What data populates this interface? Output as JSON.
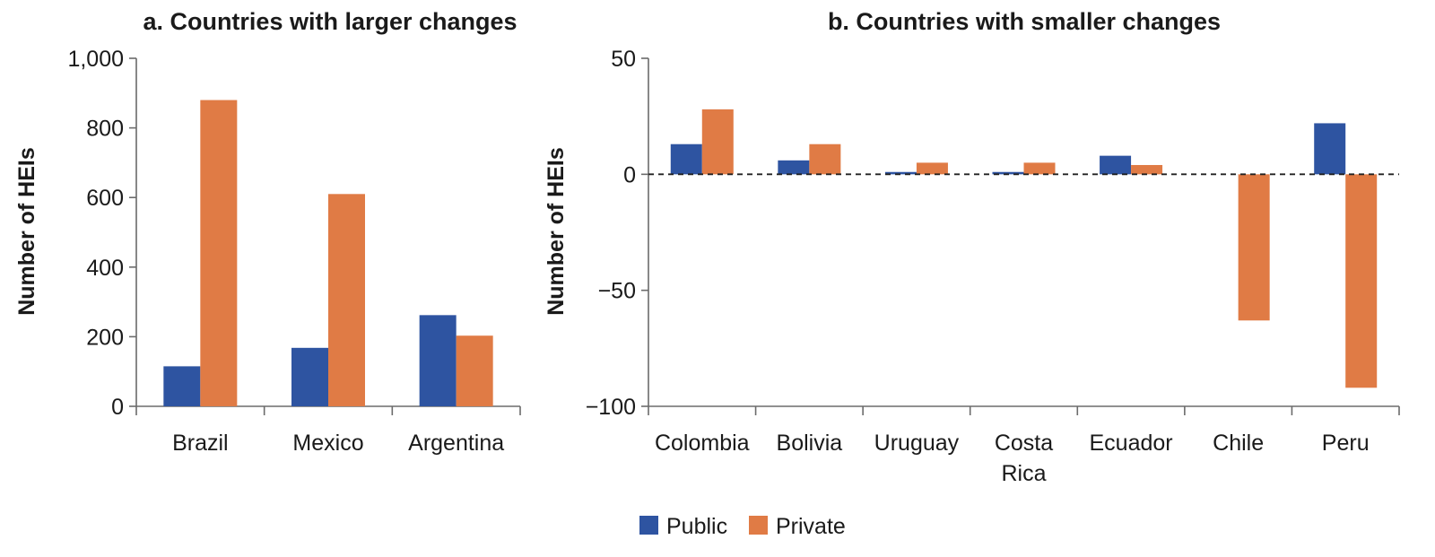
{
  "chart_data": [
    {
      "type": "bar",
      "title": "a. Countries with larger changes",
      "ylabel": "Number of HEIs",
      "xlabel": "",
      "ylim": [
        0,
        1000
      ],
      "yticks": [
        0,
        200,
        400,
        600,
        800,
        1000
      ],
      "ytick_labels": [
        "0",
        "200",
        "400",
        "600",
        "800",
        "1,000"
      ],
      "categories": [
        [
          "Brazil"
        ],
        [
          "Mexico"
        ],
        [
          "Argentina"
        ]
      ],
      "series": [
        {
          "name": "Public",
          "color": "#2e54a1",
          "values": [
            115,
            168,
            262
          ]
        },
        {
          "name": "Private",
          "color": "#e07b45",
          "values": [
            880,
            610,
            203
          ]
        }
      ]
    },
    {
      "type": "bar",
      "title": "b. Countries with smaller changes",
      "ylabel": "Number of HEIs",
      "xlabel": "",
      "ylim": [
        -100,
        50
      ],
      "yticks": [
        -100,
        -50,
        0,
        50
      ],
      "ytick_labels": [
        "−100",
        "−50",
        "0",
        "50"
      ],
      "zero_line": "dashed",
      "categories": [
        [
          "Colombia"
        ],
        [
          "Bolivia"
        ],
        [
          "Uruguay"
        ],
        [
          "Costa",
          "Rica"
        ],
        [
          "Ecuador"
        ],
        [
          "Chile"
        ],
        [
          "Peru"
        ]
      ],
      "series": [
        {
          "name": "Public",
          "color": "#2e54a1",
          "values": [
            13,
            6,
            1,
            1,
            8,
            0,
            22
          ]
        },
        {
          "name": "Private",
          "color": "#e07b45",
          "values": [
            28,
            13,
            5,
            5,
            4,
            -63,
            -92
          ]
        }
      ]
    }
  ],
  "legend": {
    "placement": "bottom-center",
    "items": [
      {
        "label": "Public",
        "color": "#2e54a1"
      },
      {
        "label": "Private",
        "color": "#e07b45"
      }
    ]
  }
}
